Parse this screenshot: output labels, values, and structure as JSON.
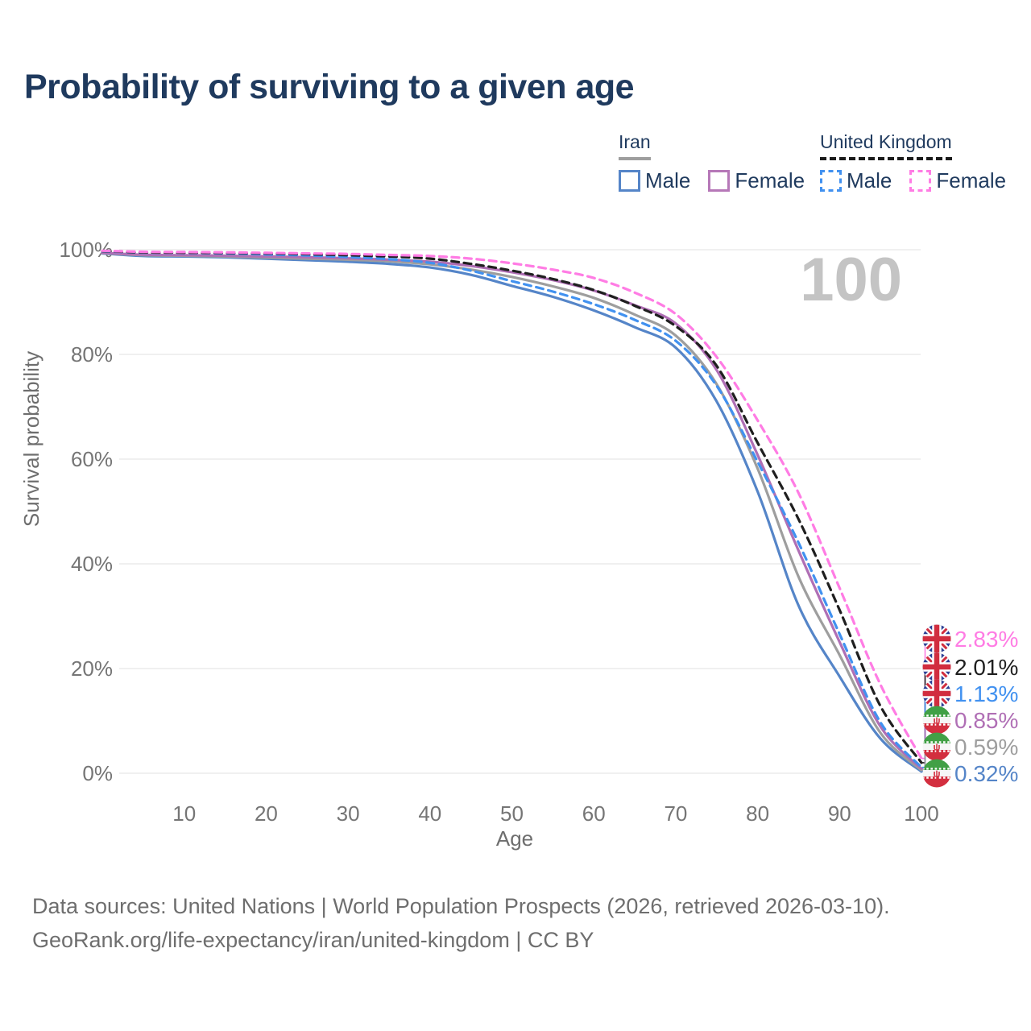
{
  "title": "Probability of surviving to a given age",
  "watermark": {
    "text": "100"
  },
  "legend": {
    "iran": {
      "title": "Iran",
      "underline_color": "#9e9e9e",
      "underline_style": "solid",
      "items": [
        {
          "label": "Male",
          "color": "#5585c8",
          "dash": false
        },
        {
          "label": "Female",
          "color": "#b678b8",
          "dash": false
        }
      ]
    },
    "uk": {
      "title": "United Kingdom",
      "underline_color": "#1a1a1a",
      "underline_style": "dashed",
      "items": [
        {
          "label": "Male",
          "color": "#4191f0",
          "dash": true
        },
        {
          "label": "Female",
          "color": "#ff7ce4",
          "dash": true
        }
      ]
    }
  },
  "axes": {
    "y_title": "Survival probability",
    "x_title": "Age",
    "y_ticks": [
      {
        "v": 0,
        "label": "0%"
      },
      {
        "v": 20,
        "label": "20%"
      },
      {
        "v": 40,
        "label": "40%"
      },
      {
        "v": 60,
        "label": "60%"
      },
      {
        "v": 80,
        "label": "80%"
      },
      {
        "v": 100,
        "label": "100%"
      }
    ],
    "x_ticks": [
      {
        "v": 10,
        "label": "10"
      },
      {
        "v": 20,
        "label": "20"
      },
      {
        "v": 30,
        "label": "30"
      },
      {
        "v": 40,
        "label": "40"
      },
      {
        "v": 50,
        "label": "50"
      },
      {
        "v": 60,
        "label": "60"
      },
      {
        "v": 70,
        "label": "70"
      },
      {
        "v": 80,
        "label": "80"
      },
      {
        "v": 90,
        "label": "90"
      },
      {
        "v": 100,
        "label": "100"
      }
    ],
    "tick_color": "#757575",
    "grid_color": "#e8e8e8"
  },
  "chart_data": {
    "type": "line",
    "title": "Probability of surviving to a given age",
    "xlabel": "Age",
    "ylabel": "Survival probability",
    "xlim": [
      0,
      100
    ],
    "ylim": [
      0,
      100
    ],
    "grid": true,
    "x": [
      0,
      5,
      10,
      15,
      20,
      25,
      30,
      35,
      40,
      45,
      50,
      55,
      60,
      65,
      70,
      75,
      80,
      85,
      90,
      95,
      100
    ],
    "series": [
      {
        "name": "Iran Male",
        "country": "Iran",
        "sex": "Male",
        "flag": "iran",
        "color": "#5585c8",
        "dash": false,
        "end_label": "0.32%",
        "values": [
          99.3,
          98.8,
          98.7,
          98.55,
          98.3,
          98.0,
          97.7,
          97.3,
          96.6,
          95.2,
          93.1,
          91.0,
          88.4,
          85.2,
          81.3,
          71.0,
          53.8,
          32.0,
          18.5,
          6.6,
          0.32
        ]
      },
      {
        "name": "Iran Both sexes",
        "country": "Iran",
        "sex": "Both",
        "flag": "iran",
        "color": "#9e9e9e",
        "dash": false,
        "end_label": "0.59%",
        "values": [
          99.35,
          98.95,
          98.85,
          98.7,
          98.5,
          98.3,
          98.1,
          97.8,
          97.2,
          96.2,
          94.8,
          93.0,
          90.8,
          87.6,
          83.6,
          74.3,
          58.2,
          37.5,
          22.6,
          7.7,
          0.59
        ]
      },
      {
        "name": "Iran Female",
        "country": "Iran",
        "sex": "Female",
        "flag": "iran",
        "color": "#b06fb5",
        "dash": false,
        "end_label": "0.85%",
        "values": [
          99.4,
          99.05,
          98.95,
          98.85,
          98.7,
          98.55,
          98.35,
          98.1,
          97.7,
          96.9,
          95.7,
          94.2,
          92.2,
          89.4,
          85.9,
          77.0,
          60.8,
          42.5,
          25.1,
          8.9,
          0.85
        ]
      },
      {
        "name": "United Kingdom Male",
        "country": "United Kingdom",
        "sex": "Male",
        "flag": "uk",
        "color": "#4191f0",
        "dash": true,
        "end_label": "1.13%",
        "values": [
          99.7,
          99.45,
          99.4,
          99.3,
          99.1,
          98.9,
          98.6,
          98.2,
          97.5,
          96.0,
          94.0,
          92.0,
          89.6,
          86.6,
          82.6,
          74.0,
          59.5,
          44.0,
          26.6,
          9.7,
          1.13
        ]
      },
      {
        "name": "United Kingdom Both sexes",
        "country": "United Kingdom",
        "sex": "Both",
        "flag": "uk",
        "color": "#1f1f1f",
        "dash": true,
        "end_label": "2.01%",
        "values": [
          99.75,
          99.5,
          99.45,
          99.4,
          99.3,
          99.15,
          98.95,
          98.7,
          98.3,
          97.3,
          96.0,
          94.4,
          92.3,
          89.3,
          85.4,
          77.8,
          63.1,
          48.5,
          31.2,
          12.8,
          2.01
        ]
      },
      {
        "name": "United Kingdom Female",
        "country": "United Kingdom",
        "sex": "Female",
        "flag": "uk",
        "color": "#ff7ce4",
        "dash": true,
        "end_label": "2.83%",
        "values": [
          99.8,
          99.6,
          99.55,
          99.5,
          99.4,
          99.3,
          99.2,
          99.0,
          98.8,
          98.3,
          97.4,
          96.2,
          94.6,
          91.8,
          87.7,
          79.5,
          67.4,
          53.5,
          35.4,
          16.9,
          2.83
        ]
      }
    ],
    "end_labels": [
      {
        "value": "2.83%",
        "flag": "uk",
        "color": "#ff7ce4"
      },
      {
        "value": "2.01%",
        "flag": "uk",
        "color": "#1f1f1f"
      },
      {
        "value": "1.13%",
        "flag": "uk",
        "color": "#4191f0"
      },
      {
        "value": "0.85%",
        "flag": "iran",
        "color": "#b06fb5"
      },
      {
        "value": "0.59%",
        "flag": "iran",
        "color": "#9e9e9e"
      },
      {
        "value": "0.32%",
        "flag": "iran",
        "color": "#5585c8"
      }
    ],
    "legend_position": "top-right"
  },
  "footer": {
    "line1": "Data sources: United Nations | World Population Prospects (2026, retrieved 2026-03-10).",
    "line2": "GeoRank.org/life-expectancy/iran/united-kingdom | CC BY"
  }
}
